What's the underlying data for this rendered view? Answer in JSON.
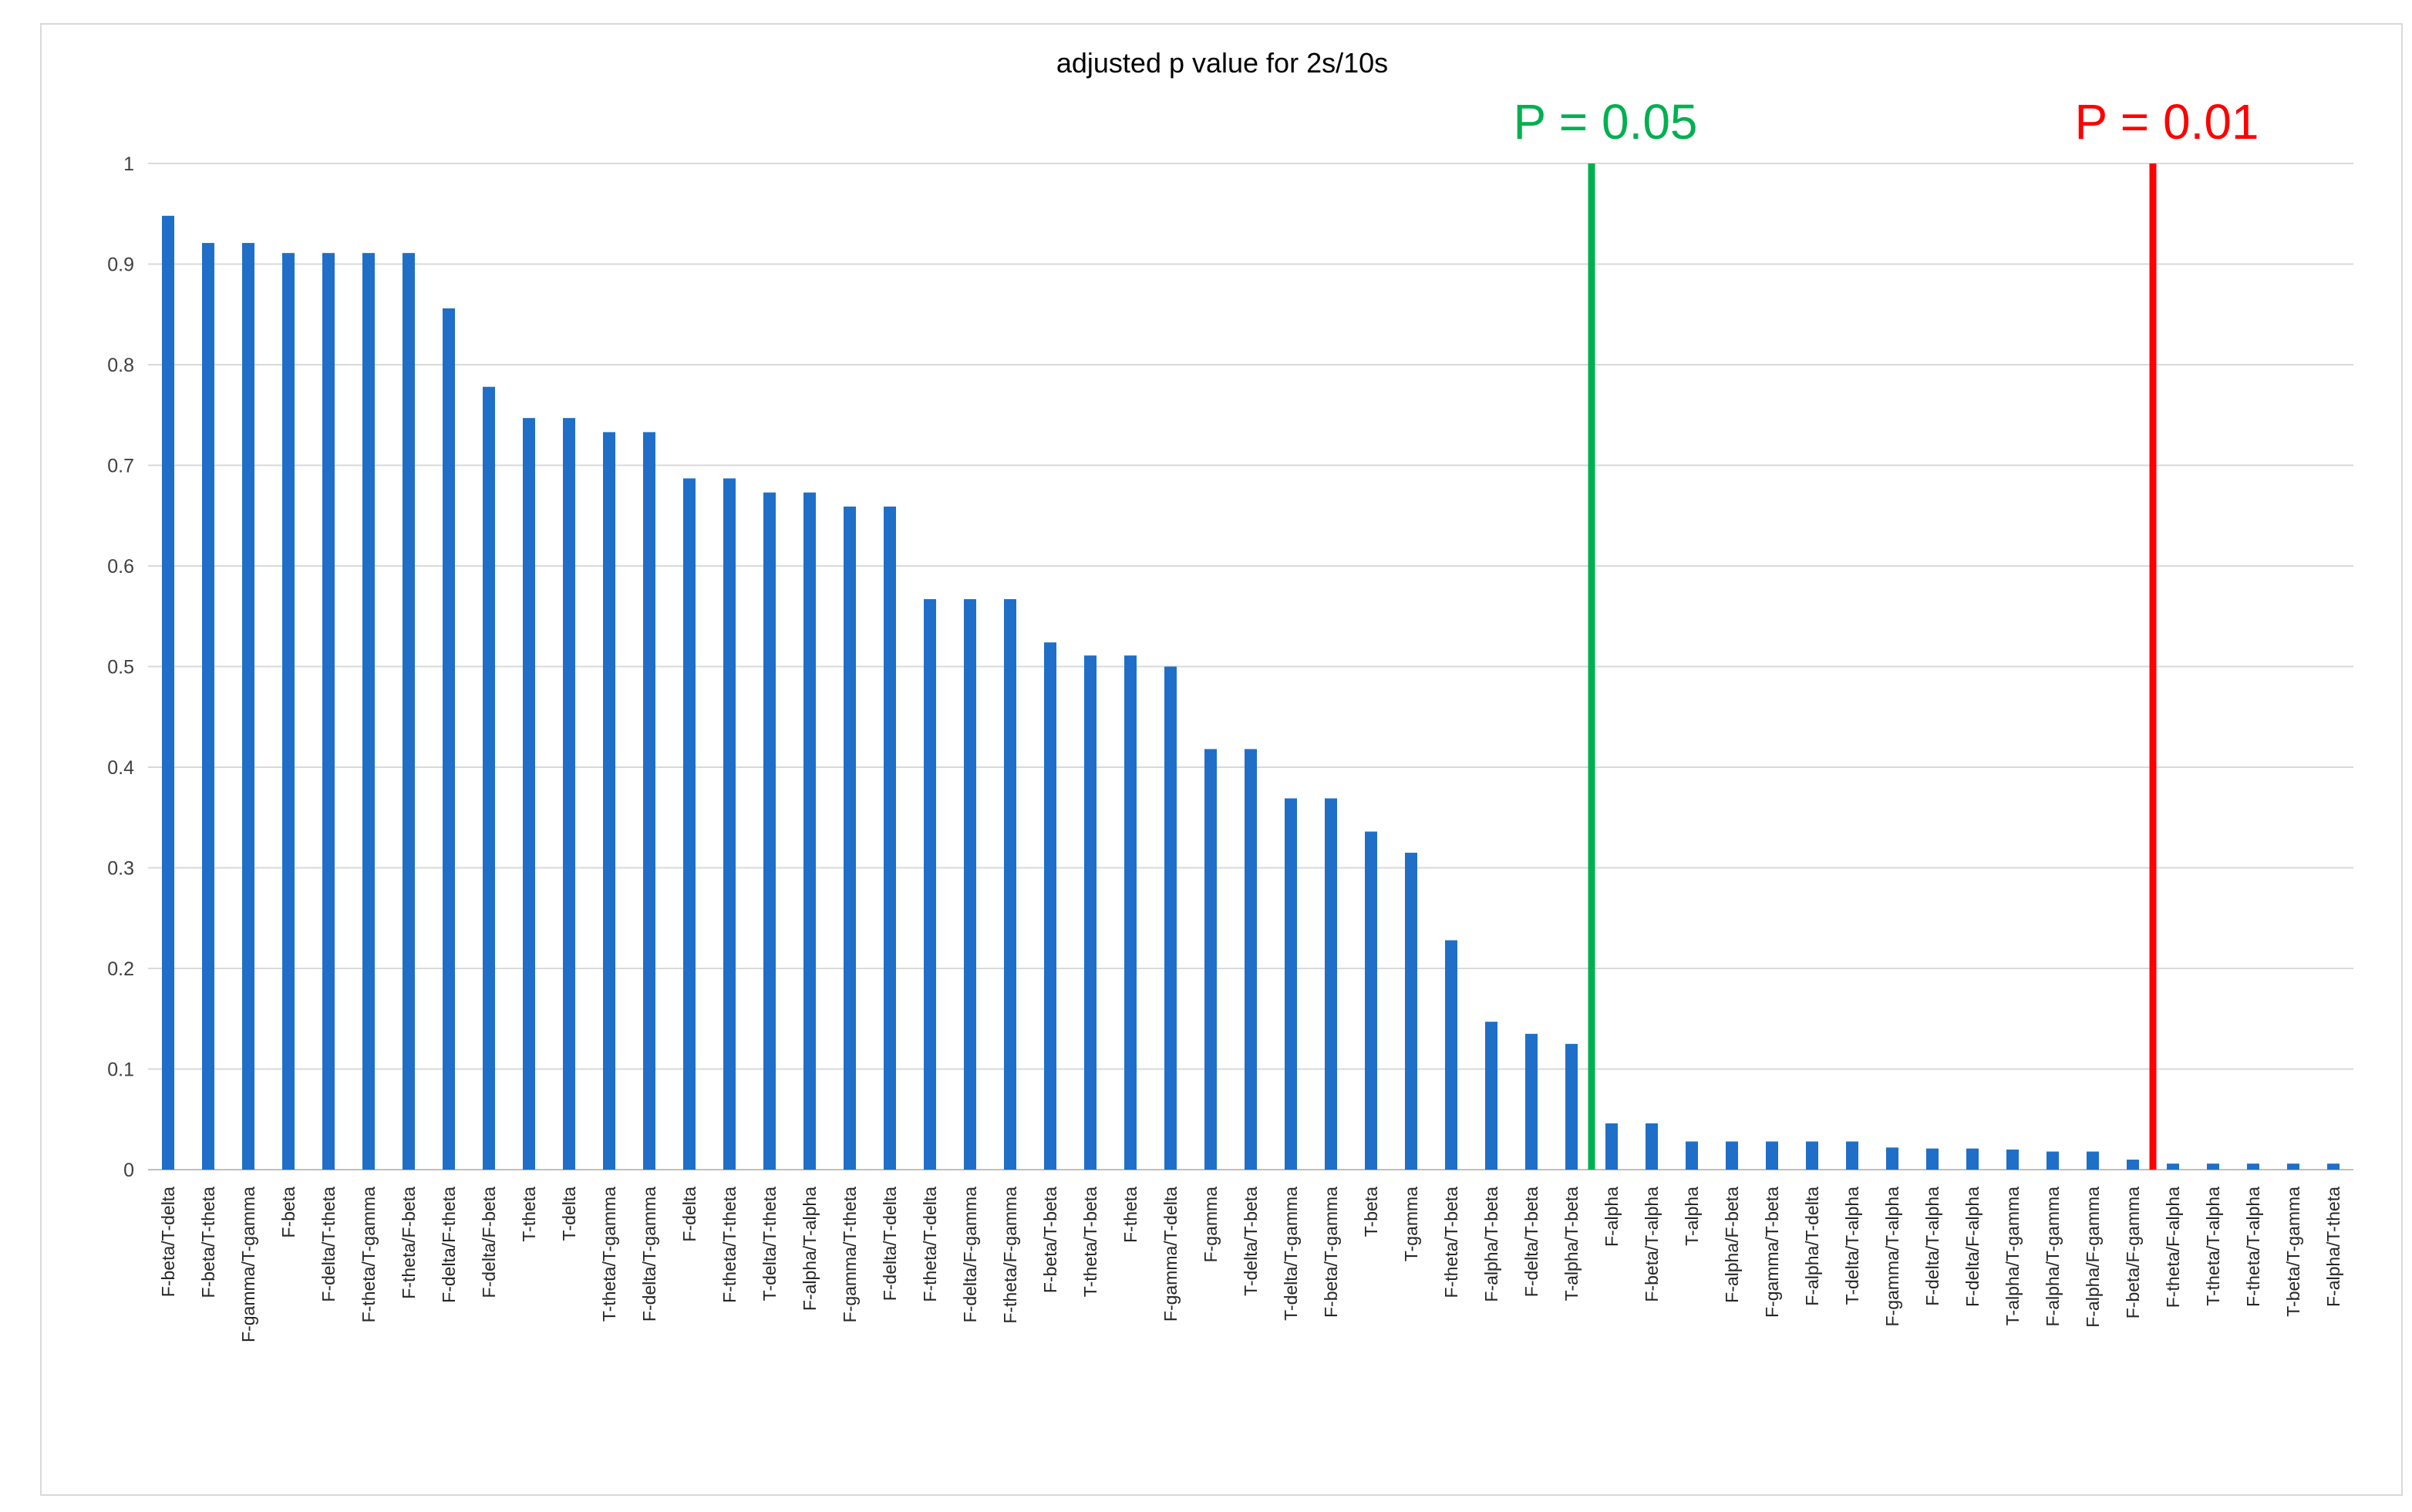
{
  "chart_data": {
    "type": "bar",
    "title": "adjusted p value for 2s/10s",
    "xlabel": "",
    "ylabel": "",
    "ylim": [
      0,
      1
    ],
    "yticks": [
      0,
      0.1,
      0.2,
      0.3,
      0.4,
      0.5,
      0.6,
      0.7,
      0.8,
      0.9,
      1
    ],
    "yticklabels": [
      "0",
      "0.1",
      "0.2",
      "0.3",
      "0.4",
      "0.5",
      "0.6",
      "0.7",
      "0.8",
      "0.9",
      "1"
    ],
    "grid": true,
    "legend": "none",
    "bar_color": "#1f6fc8",
    "categories": [
      "F-beta/T-delta",
      "F-beta/T-theta",
      "F-gamma/T-gamma",
      "F-beta",
      "F-delta/T-theta",
      "F-theta/T-gamma",
      "F-theta/F-beta",
      "F-delta/F-theta",
      "F-delta/F-beta",
      "T-theta",
      "T-delta",
      "T-theta/T-gamma",
      "F-delta/T-gamma",
      "F-delta",
      "F-theta/T-theta",
      "T-delta/T-theta",
      "F-alpha/T-alpha",
      "F-gamma/T-theta",
      "F-delta/T-delta",
      "F-theta/T-delta",
      "F-delta/F-gamma",
      "F-theta/F-gamma",
      "F-beta/T-beta",
      "T-theta/T-beta",
      "F-theta",
      "F-gamma/T-delta",
      "F-gamma",
      "T-delta/T-beta",
      "T-delta/T-gamma",
      "F-beta/T-gamma",
      "T-beta",
      "T-gamma",
      "F-theta/T-beta",
      "F-alpha/T-beta",
      "F-delta/T-beta",
      "T-alpha/T-beta",
      "F-alpha",
      "F-beta/T-alpha",
      "T-alpha",
      "F-alpha/F-beta",
      "F-gamma/T-beta",
      "F-alpha/T-delta",
      "T-delta/T-alpha",
      "F-gamma/T-alpha",
      "F-delta/T-alpha",
      "F-delta/F-alpha",
      "T-alpha/T-gamma",
      "F-alpha/T-gamma",
      "F-alpha/F-gamma",
      "F-beta/F-gamma",
      "F-theta/F-alpha",
      "T-theta/T-alpha",
      "F-theta/T-alpha",
      "T-beta/T-gamma",
      "F-alpha/T-theta"
    ],
    "values": [
      0.948,
      0.921,
      0.921,
      0.911,
      0.911,
      0.911,
      0.911,
      0.856,
      0.778,
      0.747,
      0.747,
      0.733,
      0.733,
      0.687,
      0.687,
      0.673,
      0.673,
      0.659,
      0.659,
      0.567,
      0.567,
      0.567,
      0.524,
      0.511,
      0.511,
      0.5,
      0.418,
      0.418,
      0.369,
      0.369,
      0.336,
      0.315,
      0.228,
      0.147,
      0.135,
      0.125,
      0.046,
      0.046,
      0.028,
      0.028,
      0.028,
      0.028,
      0.028,
      0.022,
      0.021,
      0.021,
      0.02,
      0.018,
      0.018,
      0.01,
      0.006,
      0.006,
      0.006,
      0.006,
      0.006
    ],
    "annotations": [
      {
        "text": "P = 0.05",
        "color": "#00b050",
        "after_category_index": 35
      },
      {
        "text": "P = 0.01",
        "color": "#ff0000",
        "after_category_index": 49
      }
    ]
  }
}
